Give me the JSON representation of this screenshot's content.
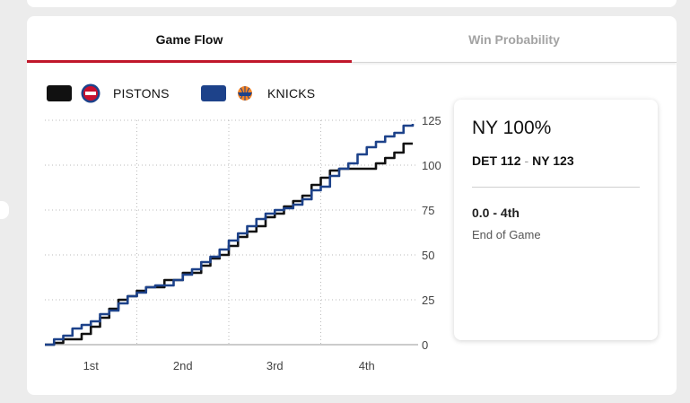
{
  "tabs": [
    {
      "label": "Game Flow",
      "active": true
    },
    {
      "label": "Win Probability",
      "active": false
    }
  ],
  "legend": [
    {
      "team": "PISTONS",
      "color": "#111111",
      "logo": "pistons-logo-icon"
    },
    {
      "team": "KNICKS",
      "color": "#1d428a",
      "logo": "knicks-logo-icon"
    }
  ],
  "info": {
    "probability": "NY 100%",
    "away_score": "DET 112",
    "home_score": "NY 123",
    "dash": "-",
    "clock": "0.0 - 4th",
    "status": "End of Game"
  },
  "chart_data": {
    "type": "line",
    "x_labels": [
      "1st",
      "2nd",
      "3rd",
      "4th"
    ],
    "y_ticks": [
      0,
      25,
      50,
      75,
      100,
      125
    ],
    "ylim": [
      0,
      125
    ],
    "xlim": [
      0,
      4
    ],
    "grid": true,
    "series": [
      {
        "name": "PISTONS",
        "color": "#111111",
        "points": [
          [
            0,
            0
          ],
          [
            0.1,
            1
          ],
          [
            0.2,
            3
          ],
          [
            0.4,
            6
          ],
          [
            0.5,
            10
          ],
          [
            0.6,
            15
          ],
          [
            0.7,
            20
          ],
          [
            0.8,
            25
          ],
          [
            0.9,
            27
          ],
          [
            1.0,
            30
          ],
          [
            1.1,
            32
          ],
          [
            1.3,
            36
          ],
          [
            1.5,
            40
          ],
          [
            1.7,
            44
          ],
          [
            1.8,
            48
          ],
          [
            1.9,
            50
          ],
          [
            2.0,
            55
          ],
          [
            2.1,
            60
          ],
          [
            2.2,
            63
          ],
          [
            2.3,
            66
          ],
          [
            2.4,
            71
          ],
          [
            2.5,
            73
          ],
          [
            2.6,
            77
          ],
          [
            2.7,
            80
          ],
          [
            2.8,
            83
          ],
          [
            2.9,
            89
          ],
          [
            3.0,
            93
          ],
          [
            3.1,
            97
          ],
          [
            3.2,
            98
          ],
          [
            3.3,
            98
          ],
          [
            3.4,
            98
          ],
          [
            3.5,
            98
          ],
          [
            3.6,
            101
          ],
          [
            3.7,
            104
          ],
          [
            3.8,
            107
          ],
          [
            3.9,
            112
          ],
          [
            4.0,
            112
          ]
        ]
      },
      {
        "name": "KNICKS",
        "color": "#1d428a",
        "points": [
          [
            0,
            0
          ],
          [
            0.1,
            3
          ],
          [
            0.2,
            5
          ],
          [
            0.3,
            9
          ],
          [
            0.4,
            11
          ],
          [
            0.5,
            13
          ],
          [
            0.6,
            17
          ],
          [
            0.7,
            19
          ],
          [
            0.8,
            23
          ],
          [
            0.9,
            27
          ],
          [
            1.0,
            29
          ],
          [
            1.1,
            32
          ],
          [
            1.2,
            33
          ],
          [
            1.4,
            36
          ],
          [
            1.5,
            39
          ],
          [
            1.6,
            42
          ],
          [
            1.7,
            46
          ],
          [
            1.8,
            49
          ],
          [
            1.9,
            53
          ],
          [
            2.0,
            58
          ],
          [
            2.1,
            62
          ],
          [
            2.2,
            66
          ],
          [
            2.3,
            70
          ],
          [
            2.4,
            73
          ],
          [
            2.5,
            75
          ],
          [
            2.6,
            76
          ],
          [
            2.7,
            78
          ],
          [
            2.8,
            81
          ],
          [
            2.9,
            86
          ],
          [
            3.0,
            88
          ],
          [
            3.1,
            94
          ],
          [
            3.2,
            98
          ],
          [
            3.3,
            101
          ],
          [
            3.4,
            106
          ],
          [
            3.5,
            110
          ],
          [
            3.6,
            113
          ],
          [
            3.7,
            116
          ],
          [
            3.8,
            118
          ],
          [
            3.9,
            122
          ],
          [
            4.0,
            123
          ]
        ]
      }
    ]
  }
}
